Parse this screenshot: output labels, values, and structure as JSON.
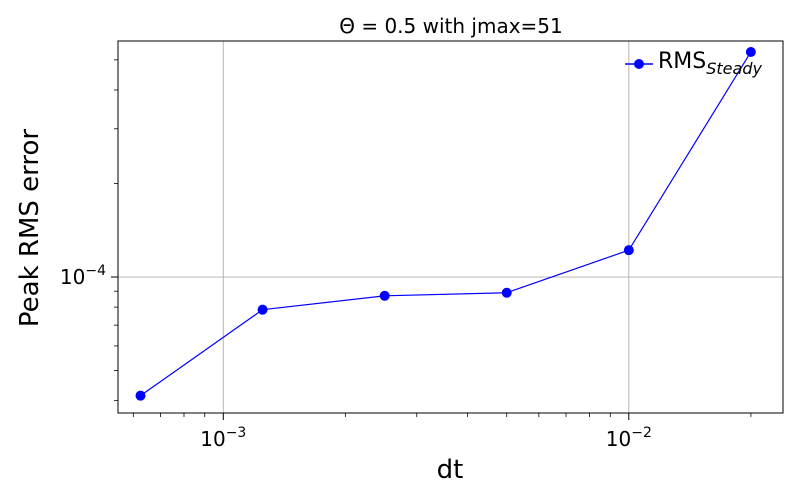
{
  "chart_data": {
    "type": "line",
    "title": "Θ = 0.5 with jmax=51",
    "xlabel": "dt",
    "ylabel": "Peak RMS error",
    "xscale": "log",
    "yscale": "log",
    "xlim": [
      0.00055,
      0.024
    ],
    "ylim": [
      3.65e-05,
      0.000575
    ],
    "grid": true,
    "x_major_ticks": [
      {
        "value": 0.001,
        "base": "10",
        "exp": "−3"
      },
      {
        "value": 0.01,
        "base": "10",
        "exp": "−2"
      }
    ],
    "y_major_ticks": [
      {
        "value": 0.0001,
        "base": "10",
        "exp": "−4"
      }
    ],
    "legend_position": "upper-right",
    "series": [
      {
        "name": "RMS",
        "name_subscript": "Steady",
        "color": "#0000ff",
        "x": [
          0.000625,
          0.00125,
          0.0025,
          0.005,
          0.01,
          0.02
        ],
        "y": [
          4.15e-05,
          7.85e-05,
          8.7e-05,
          8.9e-05,
          0.000122,
          0.00053
        ]
      }
    ]
  }
}
